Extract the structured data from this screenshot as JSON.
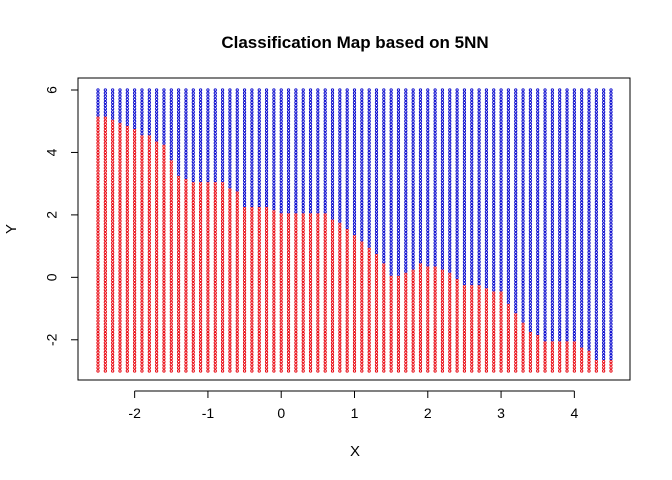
{
  "chart_data": {
    "type": "scatter",
    "title": "Classification Map based on 5NN",
    "xlabel": "X",
    "ylabel": "Y",
    "xlim": [
      -2.5,
      4.5
    ],
    "ylim": [
      -3,
      6
    ],
    "x_ticks": [
      -2,
      -1,
      0,
      1,
      2,
      3,
      4
    ],
    "y_ticks": [
      -2,
      0,
      2,
      4,
      6
    ],
    "x_tick_labels": [
      "-2",
      "-1",
      "0",
      "1",
      "2",
      "3",
      "4"
    ],
    "y_tick_labels": [
      "-2",
      "0",
      "2",
      "4",
      "6"
    ],
    "grid": false,
    "legend": "none",
    "grid_step": 0.1,
    "series": [
      {
        "color": "#e8000b"
      },
      {
        "color": "#0000cc"
      }
    ],
    "boundary": {
      "x": [
        -2.5,
        -2.3,
        -2.0,
        -1.8,
        -1.6,
        -1.5,
        -1.4,
        -1.1,
        -1.0,
        -0.8,
        -0.6,
        -0.5,
        -0.2,
        0.0,
        0.5,
        0.7,
        1.0,
        1.2,
        1.4,
        1.5,
        1.6,
        1.8,
        1.9,
        2.2,
        2.3,
        2.5,
        2.8,
        3.0,
        3.2,
        3.4,
        3.6,
        4.0,
        4.2,
        4.3,
        4.5
      ],
      "y": [
        5.2,
        5.0,
        4.7,
        4.5,
        4.2,
        3.8,
        3.3,
        3.0,
        3.1,
        3.1,
        2.7,
        2.3,
        2.2,
        2.1,
        2.1,
        1.9,
        1.4,
        1.0,
        0.5,
        0.1,
        0.1,
        0.3,
        0.4,
        0.3,
        0.2,
        -0.2,
        -0.3,
        -0.5,
        -1.1,
        -1.7,
        -2.0,
        -2.1,
        -2.4,
        -2.6,
        -2.7
      ]
    }
  }
}
